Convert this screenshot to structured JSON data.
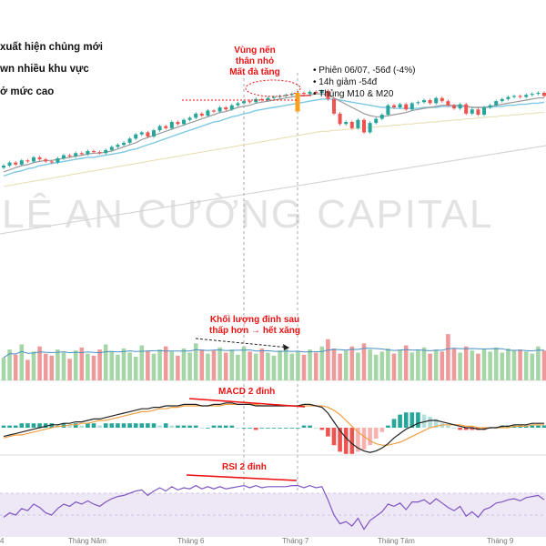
{
  "page": {
    "left_notes": [
      "xuất hiện chủng mới",
      "wn nhiều khu vực",
      "ở mức cao"
    ],
    "bullets": [
      "Phiên 06/07, -56đ (-4%)",
      "14h giảm -54đ",
      "Thủng  M10 & M20"
    ],
    "annotation_top": [
      "Vùng nến",
      "thân nhỏ",
      "Mất đà tăng"
    ],
    "annotation_volume": [
      "Khối lượng đỉnh sau",
      "thấp hơn → hết xăng"
    ],
    "annotation_macd": "MACD 2 đỉnh",
    "annotation_rsi": "RSI 2 đỉnh",
    "watermark": "LÊ AN CƯỜNG CAPITAL"
  },
  "chart_data": {
    "type": "candlestick",
    "x_axis_labels": [
      "4",
      "Tháng Năm",
      "Tháng 6",
      "Tháng 7",
      "Tháng Tám",
      "Tháng 9"
    ],
    "panels": [
      "price",
      "volume",
      "macd",
      "rsi"
    ],
    "series": [
      {
        "name": "Close",
        "values": [
          30,
          33,
          31,
          35,
          34,
          38,
          36,
          34,
          33,
          37,
          40,
          39,
          42,
          41,
          44,
          43,
          42,
          45,
          48,
          50,
          52,
          56,
          60,
          62,
          58,
          64,
          68,
          66,
          72,
          70,
          74,
          76,
          80,
          78,
          83,
          82,
          86,
          84,
          88,
          90,
          92,
          91,
          94,
          93,
          95,
          96,
          97,
          98,
          99,
          100,
          99,
          101,
          100,
          102,
          94,
          80,
          70,
          72,
          66,
          74,
          62,
          71,
          75,
          79,
          88,
          86,
          89,
          84,
          90,
          91,
          93,
          90,
          95,
          92,
          88,
          85,
          89,
          80,
          84,
          79,
          86,
          88,
          92,
          94,
          96,
          97,
          96,
          98,
          99,
          100,
          97
        ]
      },
      {
        "name": "M10",
        "values": [
          24,
          26,
          28,
          30,
          31,
          33,
          34,
          35,
          35,
          36,
          37,
          38,
          39,
          40,
          41,
          42,
          42,
          43,
          44,
          46,
          48,
          50,
          52,
          55,
          57,
          59,
          61,
          63,
          65,
          67,
          69,
          71,
          73,
          75,
          77,
          79,
          81,
          82,
          84,
          86,
          87,
          88,
          90,
          91,
          92,
          93,
          94,
          95,
          96,
          97,
          97,
          98,
          99,
          99,
          98,
          95,
          92,
          89,
          86,
          83,
          80,
          78,
          77,
          77,
          78,
          79,
          80,
          81,
          83,
          84,
          85,
          86,
          87,
          88,
          88,
          88,
          88,
          87,
          86,
          86,
          86,
          87,
          88,
          89,
          90,
          91,
          92,
          93,
          94,
          95,
          95
        ]
      },
      {
        "name": "M20",
        "values": [
          20,
          22,
          24,
          25,
          27,
          28,
          30,
          31,
          32,
          33,
          34,
          35,
          36,
          37,
          38,
          38,
          39,
          40,
          41,
          42,
          43,
          45,
          46,
          48,
          50,
          52,
          54,
          56,
          58,
          60,
          62,
          64,
          66,
          68,
          70,
          72,
          73,
          75,
          77,
          78,
          80,
          81,
          83,
          84,
          85,
          86,
          87,
          88,
          89,
          90,
          91,
          92,
          93,
          94,
          94,
          94,
          93,
          92,
          91,
          90,
          89,
          88,
          87,
          86,
          86,
          85,
          85,
          85,
          85,
          85,
          86,
          86,
          86,
          87,
          87,
          87,
          87,
          87,
          86,
          86,
          86,
          86,
          87,
          87,
          88,
          88,
          89,
          89,
          90,
          90,
          91
        ]
      },
      {
        "name": "MA50",
        "values": [
          10,
          11,
          12,
          13,
          14,
          15,
          16,
          17,
          18,
          19,
          20,
          21,
          22,
          23,
          24,
          25,
          26,
          27,
          28,
          29,
          30,
          31,
          32,
          33,
          34,
          35,
          36,
          37,
          38,
          39,
          40,
          41,
          42,
          43,
          44,
          45,
          46,
          47,
          48,
          49,
          50,
          51,
          52,
          53,
          54,
          55,
          56,
          57,
          58,
          59,
          60,
          61,
          62,
          63,
          63,
          64,
          64,
          65,
          65,
          66,
          66,
          67,
          67,
          68,
          68,
          69,
          69,
          70,
          70,
          71,
          71,
          72,
          72,
          73,
          73,
          74,
          74,
          75,
          75,
          76,
          76,
          77,
          77,
          78,
          78,
          79,
          79,
          80,
          80,
          81,
          81
        ]
      },
      {
        "name": "Volume",
        "values": [
          22,
          30,
          25,
          35,
          20,
          28,
          33,
          26,
          24,
          30,
          27,
          21,
          29,
          32,
          26,
          24,
          30,
          35,
          28,
          25,
          31,
          27,
          23,
          34,
          29,
          26,
          30,
          33,
          28,
          24,
          31,
          27,
          36,
          30,
          26,
          29,
          32,
          27,
          30,
          25,
          33,
          28,
          26,
          31,
          27,
          24,
          29,
          32,
          26,
          28,
          25,
          30,
          27,
          33,
          40,
          31,
          26,
          29,
          33,
          27,
          36,
          30,
          25,
          28,
          31,
          26,
          30,
          34,
          27,
          29,
          32,
          26,
          30,
          28,
          45,
          31,
          27,
          33,
          29,
          26,
          30,
          28,
          32,
          27,
          31,
          29,
          30,
          28,
          26,
          33,
          29
        ]
      },
      {
        "name": "MACD",
        "values": [
          -6,
          -5,
          -4,
          -3,
          -2,
          -1,
          0,
          1,
          2,
          2,
          3,
          3,
          4,
          4,
          5,
          6,
          6,
          7,
          8,
          9,
          10,
          11,
          12,
          13,
          13,
          14,
          14,
          15,
          15,
          15,
          16,
          16,
          16,
          15,
          15,
          16,
          16,
          17,
          17,
          16,
          16,
          16,
          15,
          15,
          15,
          15,
          15,
          15,
          15,
          15,
          16,
          16,
          15,
          14,
          10,
          4,
          -2,
          -7,
          -11,
          -14,
          -16,
          -17,
          -16,
          -14,
          -11,
          -7,
          -4,
          -1,
          1,
          3,
          4,
          5,
          5,
          4,
          3,
          2,
          1,
          0,
          0,
          -1,
          -1,
          0,
          0,
          1,
          1,
          2,
          2,
          2,
          3,
          3,
          3
        ]
      },
      {
        "name": "Signal",
        "values": [
          -7,
          -6,
          -5,
          -5,
          -4,
          -3,
          -2,
          -1,
          0,
          1,
          1,
          2,
          2,
          3,
          3,
          4,
          5,
          5,
          6,
          7,
          8,
          9,
          10,
          11,
          11,
          12,
          13,
          13,
          14,
          14,
          15,
          15,
          15,
          15,
          15,
          15,
          15,
          16,
          16,
          16,
          16,
          16,
          16,
          15,
          15,
          15,
          15,
          15,
          15,
          15,
          15,
          15,
          15,
          15,
          14,
          12,
          9,
          5,
          1,
          -3,
          -6,
          -9,
          -11,
          -12,
          -12,
          -11,
          -10,
          -8,
          -6,
          -4,
          -2,
          0,
          1,
          2,
          2,
          2,
          2,
          1,
          1,
          0,
          0,
          0,
          0,
          0,
          0,
          1,
          1,
          1,
          2,
          2,
          2
        ]
      },
      {
        "name": "RSI",
        "values": [
          48,
          52,
          50,
          56,
          54,
          60,
          57,
          52,
          50,
          56,
          60,
          58,
          62,
          60,
          63,
          60,
          58,
          62,
          65,
          67,
          68,
          70,
          72,
          73,
          68,
          72,
          75,
          72,
          76,
          73,
          75,
          74,
          77,
          74,
          76,
          74,
          76,
          74,
          75,
          76,
          77,
          75,
          77,
          75,
          76,
          76,
          76,
          76,
          77,
          77,
          75,
          77,
          75,
          76,
          64,
          50,
          42,
          44,
          40,
          47,
          37,
          45,
          49,
          53,
          60,
          58,
          61,
          55,
          62,
          62,
          64,
          60,
          65,
          61,
          57,
          54,
          58,
          49,
          53,
          48,
          55,
          57,
          61,
          62,
          64,
          65,
          63,
          66,
          67,
          68,
          64
        ]
      }
    ],
    "legend": "none",
    "grid": false
  }
}
